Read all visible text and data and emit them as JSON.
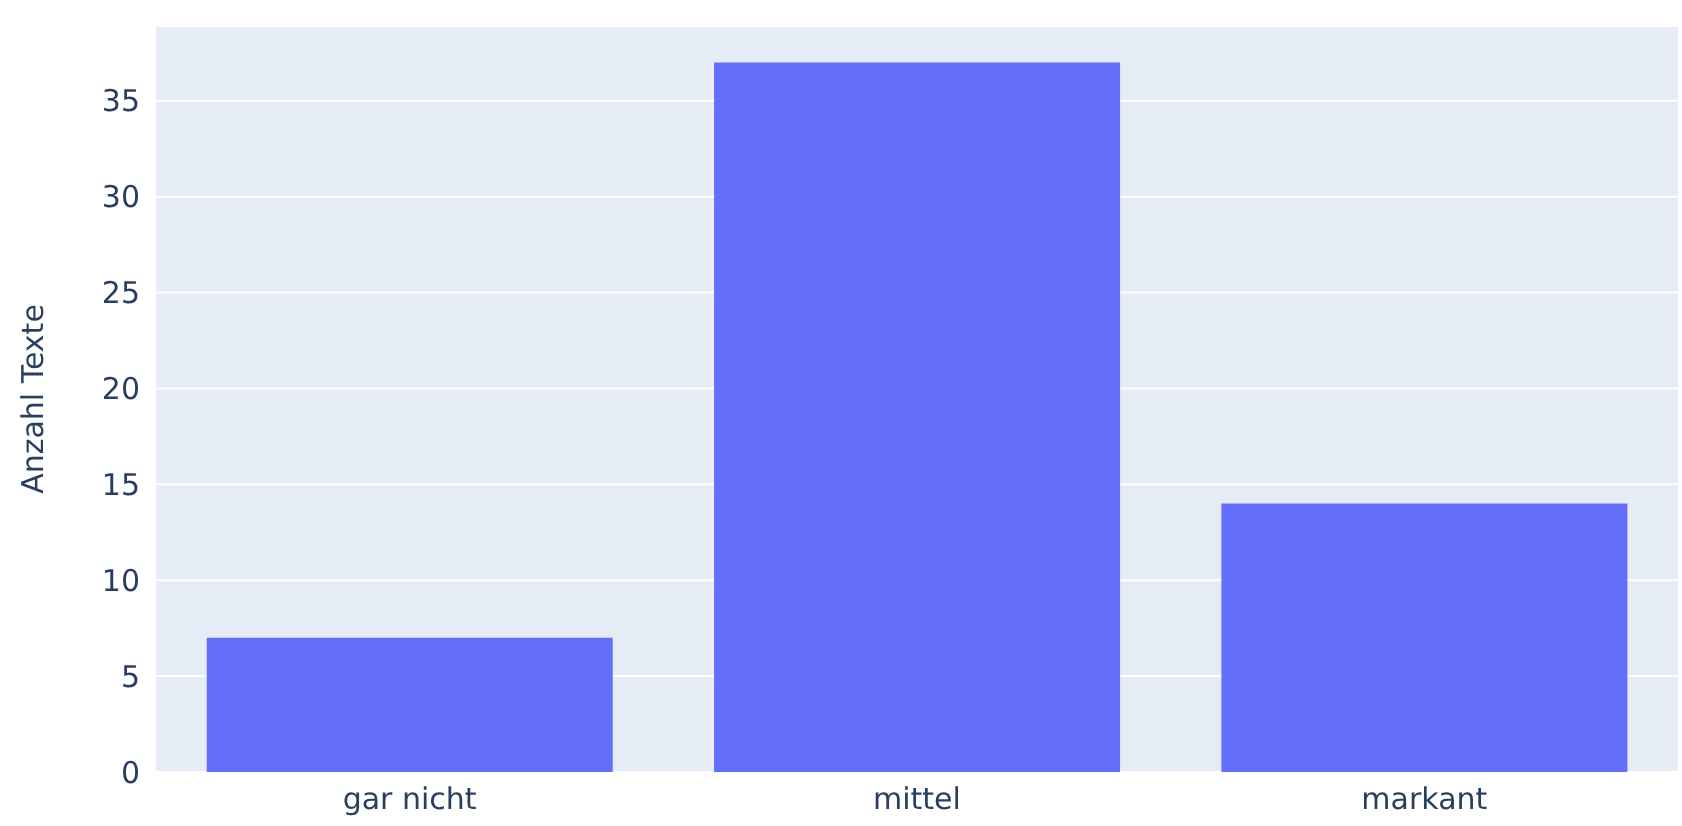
{
  "chart_data": {
    "type": "bar",
    "ylabel": "Anzahl Texte",
    "categories": [
      "gar nicht",
      "mittel",
      "markant"
    ],
    "values": [
      7,
      37,
      14
    ],
    "color": "#636efa",
    "ylim": [
      0,
      38.9
    ],
    "yticks": [
      0,
      5,
      10,
      15,
      20,
      25,
      30,
      35
    ],
    "grid": "y",
    "legend": false
  }
}
